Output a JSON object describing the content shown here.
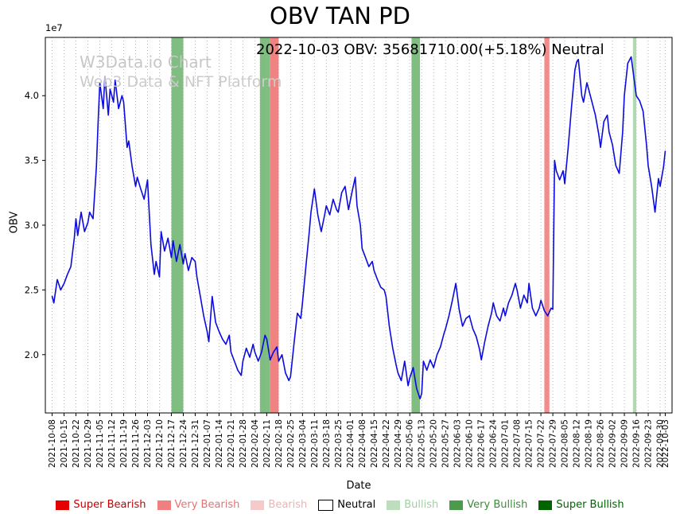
{
  "title": "OBV TAN PD",
  "annotation": "2022-10-03 OBV: 35681710.00(+5.18%) Neutral",
  "watermark": {
    "line1": "W3Data.io Chart",
    "line2": "Web3 Data & NFT Platform"
  },
  "chart_data": {
    "type": "line",
    "title": "OBV TAN PD",
    "xlabel": "Date",
    "ylabel": "OBV",
    "y_offset_label": "1e7",
    "y_unit": "1e7",
    "x_start": "2021-10-08",
    "x_end": "2022-10-03",
    "x_unit": "days since x_start",
    "ylim": [
      1.55,
      4.45
    ],
    "grid": "vertical-dotted",
    "legend_position": "bottom-center",
    "latest": {
      "date": "2022-10-03",
      "obv": "35681710.00",
      "change_pct": "+5.18%",
      "signal": "Neutral"
    },
    "y_ticks": [
      {
        "label": "2.0",
        "value": 2.0
      },
      {
        "label": "2.5",
        "value": 2.5
      },
      {
        "label": "3.0",
        "value": 3.0
      },
      {
        "label": "3.5",
        "value": 3.5
      },
      {
        "label": "4.0",
        "value": 4.0
      }
    ],
    "x_ticks": [
      "2021-10-08",
      "2021-10-15",
      "2021-10-22",
      "2021-10-29",
      "2021-11-05",
      "2021-11-12",
      "2021-11-19",
      "2021-11-26",
      "2021-12-03",
      "2021-12-10",
      "2021-12-17",
      "2021-12-24",
      "2021-12-31",
      "2022-01-07",
      "2022-01-14",
      "2022-01-21",
      "2022-01-28",
      "2022-02-04",
      "2022-02-11",
      "2022-02-18",
      "2022-02-25",
      "2022-03-04",
      "2022-03-11",
      "2022-03-18",
      "2022-03-25",
      "2022-04-01",
      "2022-04-08",
      "2022-04-15",
      "2022-04-22",
      "2022-04-29",
      "2022-05-06",
      "2022-05-13",
      "2022-05-20",
      "2022-05-27",
      "2022-06-03",
      "2022-06-10",
      "2022-06-17",
      "2022-06-24",
      "2022-07-01",
      "2022-07-08",
      "2022-07-15",
      "2022-07-22",
      "2022-07-29",
      "2022-08-05",
      "2022-08-12",
      "2022-08-19",
      "2022-08-26",
      "2022-09-02",
      "2022-09-09",
      "2022-09-16",
      "2022-09-23",
      "2022-09-30",
      "2022-10-03"
    ],
    "bands": [
      {
        "start": "2021-12-17",
        "end": "2021-12-24",
        "signal": "Very Bullish",
        "color": "#3c9a3c",
        "opacity": 0.65
      },
      {
        "start": "2022-02-07",
        "end": "2022-02-13",
        "signal": "Very Bullish",
        "color": "#3c9a3c",
        "opacity": 0.65
      },
      {
        "start": "2022-02-13",
        "end": "2022-02-18",
        "signal": "Very Bearish",
        "color": "#f07474",
        "opacity": 0.9
      },
      {
        "start": "2022-05-07",
        "end": "2022-05-12",
        "signal": "Very Bullish",
        "color": "#3c9a3c",
        "opacity": 0.65
      },
      {
        "start": "2022-07-24",
        "end": "2022-07-27",
        "signal": "Very Bearish",
        "color": "#f08080",
        "opacity": 0.9
      },
      {
        "start": "2022-09-14",
        "end": "2022-09-16",
        "signal": "Bullish",
        "color": "#aad6aa",
        "opacity": 0.9
      }
    ],
    "series": [
      {
        "name": "OBV",
        "color": "#0b0be0",
        "points": [
          [
            0,
            2.45
          ],
          [
            1,
            2.4
          ],
          [
            3,
            2.58
          ],
          [
            5,
            2.5
          ],
          [
            7,
            2.55
          ],
          [
            9,
            2.62
          ],
          [
            11,
            2.68
          ],
          [
            13,
            2.9
          ],
          [
            14,
            3.05
          ],
          [
            15,
            2.92
          ],
          [
            17,
            3.1
          ],
          [
            19,
            2.95
          ],
          [
            21,
            3.02
          ],
          [
            22,
            3.1
          ],
          [
            24,
            3.05
          ],
          [
            26,
            3.45
          ],
          [
            27,
            3.8
          ],
          [
            28,
            4.1
          ],
          [
            30,
            3.9
          ],
          [
            31,
            4.15
          ],
          [
            33,
            3.85
          ],
          [
            34,
            4.05
          ],
          [
            36,
            3.95
          ],
          [
            37,
            4.12
          ],
          [
            39,
            3.9
          ],
          [
            41,
            4.0
          ],
          [
            42,
            3.95
          ],
          [
            44,
            3.6
          ],
          [
            45,
            3.65
          ],
          [
            47,
            3.45
          ],
          [
            49,
            3.3
          ],
          [
            50,
            3.37
          ],
          [
            52,
            3.28
          ],
          [
            54,
            3.2
          ],
          [
            56,
            3.35
          ],
          [
            57,
            3.1
          ],
          [
            58,
            2.85
          ],
          [
            60,
            2.62
          ],
          [
            61,
            2.72
          ],
          [
            63,
            2.6
          ],
          [
            64,
            2.95
          ],
          [
            66,
            2.8
          ],
          [
            68,
            2.9
          ],
          [
            70,
            2.75
          ],
          [
            71,
            2.88
          ],
          [
            73,
            2.72
          ],
          [
            75,
            2.85
          ],
          [
            77,
            2.7
          ],
          [
            78,
            2.78
          ],
          [
            80,
            2.65
          ],
          [
            82,
            2.75
          ],
          [
            84,
            2.72
          ],
          [
            85,
            2.6
          ],
          [
            87,
            2.45
          ],
          [
            89,
            2.3
          ],
          [
            91,
            2.18
          ],
          [
            92,
            2.1
          ],
          [
            93,
            2.28
          ],
          [
            94,
            2.45
          ],
          [
            96,
            2.25
          ],
          [
            98,
            2.18
          ],
          [
            100,
            2.12
          ],
          [
            102,
            2.08
          ],
          [
            104,
            2.15
          ],
          [
            105,
            2.02
          ],
          [
            107,
            1.95
          ],
          [
            109,
            1.88
          ],
          [
            111,
            1.84
          ],
          [
            112,
            1.95
          ],
          [
            114,
            2.05
          ],
          [
            116,
            1.98
          ],
          [
            118,
            2.08
          ],
          [
            119,
            2.02
          ],
          [
            121,
            1.95
          ],
          [
            123,
            2.02
          ],
          [
            125,
            2.15
          ],
          [
            126,
            2.12
          ],
          [
            128,
            1.96
          ],
          [
            130,
            2.02
          ],
          [
            132,
            2.06
          ],
          [
            133,
            1.95
          ],
          [
            135,
            2.0
          ],
          [
            137,
            1.86
          ],
          [
            139,
            1.8
          ],
          [
            140,
            1.83
          ],
          [
            142,
            2.08
          ],
          [
            144,
            2.32
          ],
          [
            146,
            2.28
          ],
          [
            147,
            2.4
          ],
          [
            149,
            2.68
          ],
          [
            151,
            2.95
          ],
          [
            152,
            3.1
          ],
          [
            154,
            3.28
          ],
          [
            156,
            3.08
          ],
          [
            158,
            2.95
          ],
          [
            160,
            3.08
          ],
          [
            161,
            3.15
          ],
          [
            163,
            3.08
          ],
          [
            165,
            3.2
          ],
          [
            167,
            3.12
          ],
          [
            168,
            3.1
          ],
          [
            170,
            3.25
          ],
          [
            172,
            3.3
          ],
          [
            174,
            3.12
          ],
          [
            176,
            3.25
          ],
          [
            178,
            3.37
          ],
          [
            179,
            3.15
          ],
          [
            181,
            3.0
          ],
          [
            182,
            2.82
          ],
          [
            184,
            2.75
          ],
          [
            186,
            2.68
          ],
          [
            188,
            2.72
          ],
          [
            189,
            2.65
          ],
          [
            191,
            2.58
          ],
          [
            193,
            2.52
          ],
          [
            195,
            2.5
          ],
          [
            196,
            2.45
          ],
          [
            198,
            2.22
          ],
          [
            200,
            2.05
          ],
          [
            202,
            1.92
          ],
          [
            203,
            1.86
          ],
          [
            205,
            1.8
          ],
          [
            207,
            1.95
          ],
          [
            209,
            1.76
          ],
          [
            210,
            1.82
          ],
          [
            212,
            1.9
          ],
          [
            214,
            1.74
          ],
          [
            216,
            1.66
          ],
          [
            217,
            1.7
          ],
          [
            218,
            1.95
          ],
          [
            220,
            1.88
          ],
          [
            222,
            1.96
          ],
          [
            224,
            1.9
          ],
          [
            226,
            2.0
          ],
          [
            228,
            2.06
          ],
          [
            230,
            2.16
          ],
          [
            231,
            2.2
          ],
          [
            233,
            2.3
          ],
          [
            235,
            2.42
          ],
          [
            237,
            2.55
          ],
          [
            239,
            2.35
          ],
          [
            241,
            2.22
          ],
          [
            243,
            2.28
          ],
          [
            245,
            2.3
          ],
          [
            247,
            2.2
          ],
          [
            249,
            2.14
          ],
          [
            251,
            2.04
          ],
          [
            252,
            1.96
          ],
          [
            254,
            2.1
          ],
          [
            256,
            2.22
          ],
          [
            258,
            2.32
          ],
          [
            259,
            2.4
          ],
          [
            261,
            2.3
          ],
          [
            263,
            2.26
          ],
          [
            265,
            2.36
          ],
          [
            266,
            2.3
          ],
          [
            268,
            2.4
          ],
          [
            270,
            2.46
          ],
          [
            272,
            2.55
          ],
          [
            273,
            2.5
          ],
          [
            275,
            2.36
          ],
          [
            277,
            2.46
          ],
          [
            279,
            2.4
          ],
          [
            280,
            2.55
          ],
          [
            282,
            2.36
          ],
          [
            284,
            2.3
          ],
          [
            286,
            2.36
          ],
          [
            287,
            2.42
          ],
          [
            289,
            2.34
          ],
          [
            291,
            2.3
          ],
          [
            293,
            2.36
          ],
          [
            294,
            2.35
          ],
          [
            295,
            3.5
          ],
          [
            296,
            3.42
          ],
          [
            298,
            3.35
          ],
          [
            300,
            3.42
          ],
          [
            301,
            3.32
          ],
          [
            303,
            3.6
          ],
          [
            305,
            3.92
          ],
          [
            307,
            4.2
          ],
          [
            308,
            4.26
          ],
          [
            309,
            4.28
          ],
          [
            311,
            4.0
          ],
          [
            312,
            3.95
          ],
          [
            314,
            4.1
          ],
          [
            315,
            4.05
          ],
          [
            317,
            3.95
          ],
          [
            319,
            3.85
          ],
          [
            321,
            3.7
          ],
          [
            322,
            3.6
          ],
          [
            324,
            3.8
          ],
          [
            326,
            3.85
          ],
          [
            327,
            3.72
          ],
          [
            329,
            3.62
          ],
          [
            331,
            3.46
          ],
          [
            333,
            3.4
          ],
          [
            335,
            3.72
          ],
          [
            336,
            4.0
          ],
          [
            338,
            4.25
          ],
          [
            340,
            4.3
          ],
          [
            342,
            4.1
          ],
          [
            343,
            4.0
          ],
          [
            345,
            3.96
          ],
          [
            347,
            3.88
          ],
          [
            349,
            3.62
          ],
          [
            350,
            3.46
          ],
          [
            352,
            3.3
          ],
          [
            354,
            3.1
          ],
          [
            356,
            3.36
          ],
          [
            357,
            3.3
          ],
          [
            359,
            3.45
          ],
          [
            360,
            3.57
          ]
        ]
      }
    ]
  },
  "legend": {
    "items": [
      {
        "label": "Super Bearish",
        "color": "#e60000",
        "text_color": "#c40000",
        "border": ""
      },
      {
        "label": "Very Bearish",
        "color": "#f08080",
        "text_color": "#e57373",
        "border": ""
      },
      {
        "label": "Bearish",
        "color": "#f6caca",
        "text_color": "#edb3b3",
        "border": ""
      },
      {
        "label": "Neutral",
        "color": "#ffffff",
        "text_color": "#000000",
        "border": "#000000"
      },
      {
        "label": "Bullish",
        "color": "#bcdebc",
        "text_color": "#a2cfa2",
        "border": ""
      },
      {
        "label": "Very Bullish",
        "color": "#4a9c4a",
        "text_color": "#3d8b3d",
        "border": ""
      },
      {
        "label": "Super Bullish",
        "color": "#006400",
        "text_color": "#006400",
        "border": ""
      }
    ]
  }
}
